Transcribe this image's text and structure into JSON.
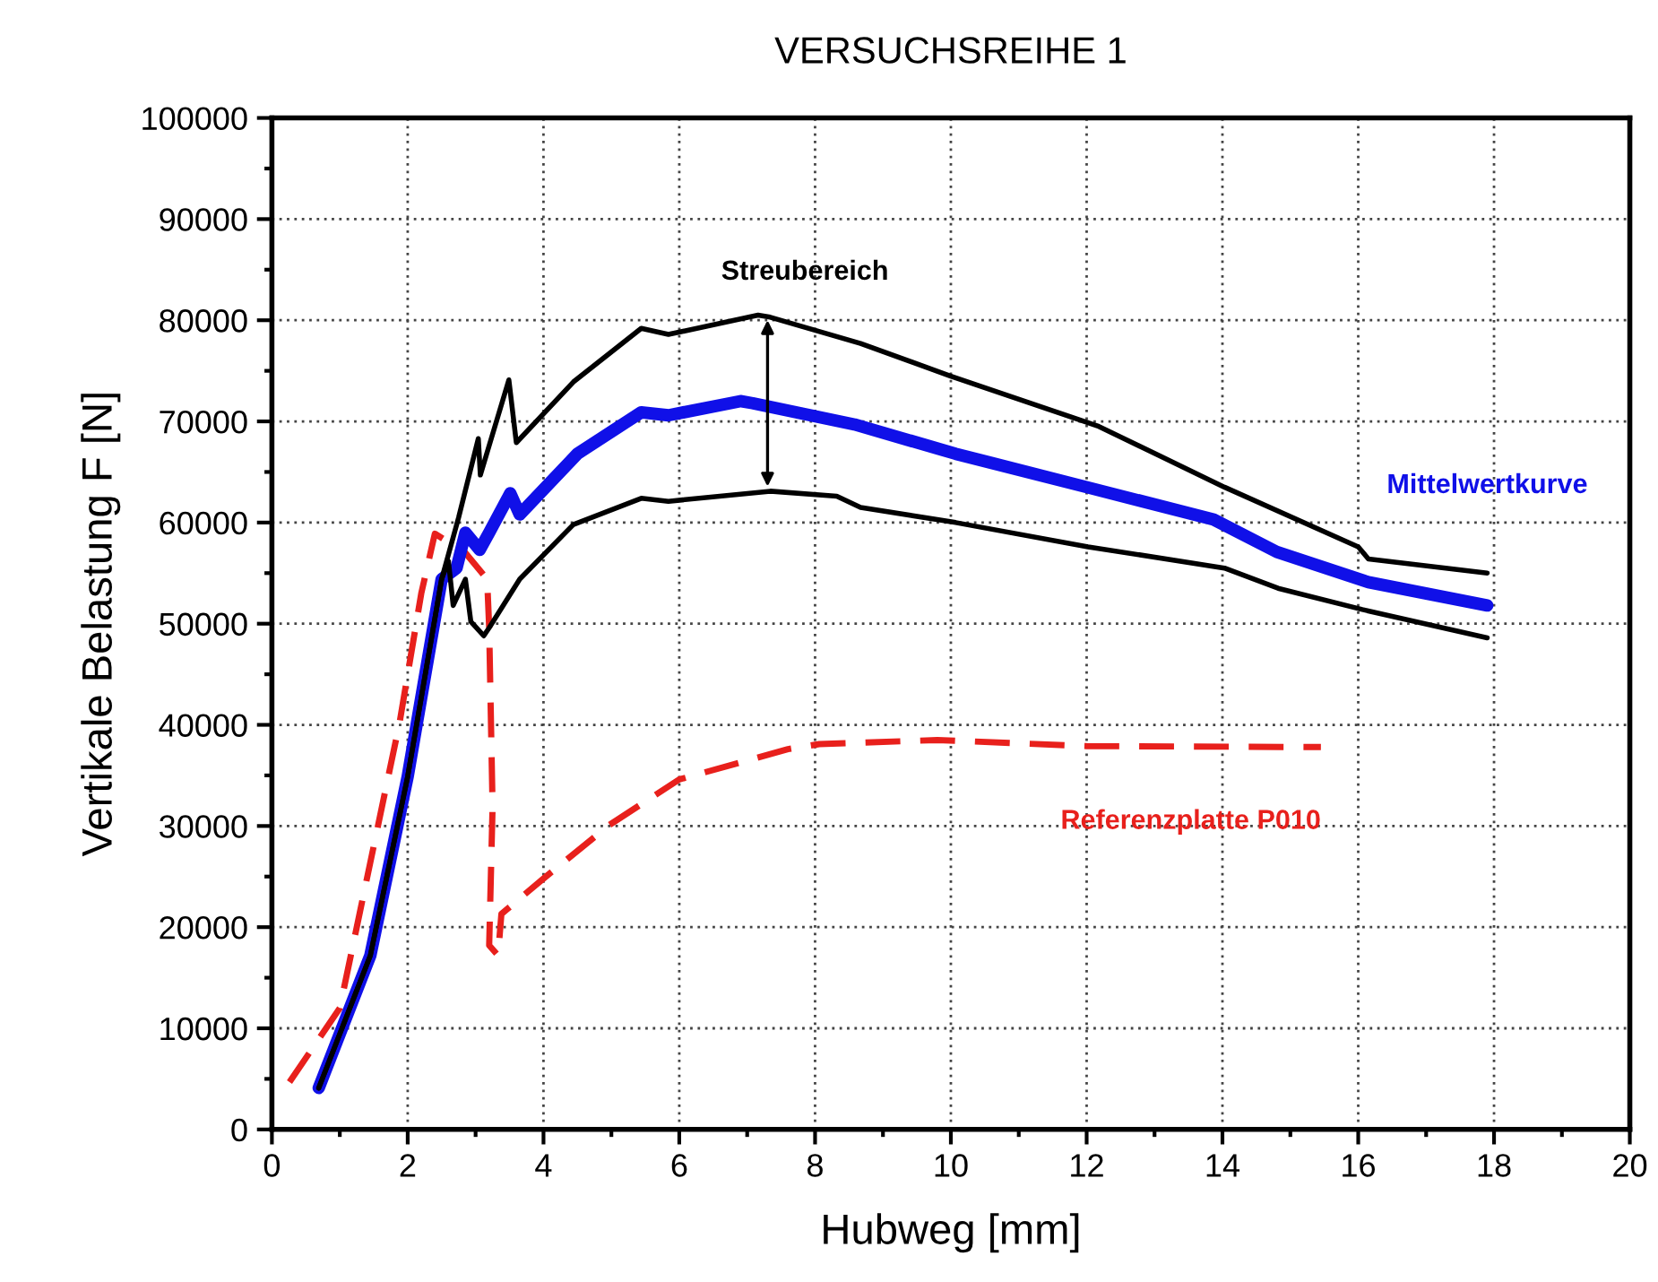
{
  "chart_data": {
    "type": "line",
    "title": "VERSUCHSREIHE 1",
    "xlabel": "Hubweg [mm]",
    "ylabel": "Vertikale Belastung F [N]",
    "xlim": [
      0,
      20
    ],
    "xticks": [
      0,
      2,
      4,
      6,
      8,
      10,
      12,
      14,
      16,
      18,
      20
    ],
    "ylim": [
      0,
      100000
    ],
    "yticks": [
      0,
      10000,
      20000,
      30000,
      40000,
      50000,
      60000,
      70000,
      80000,
      90000,
      100000
    ],
    "grid": true,
    "legend": false,
    "annotations": [
      {
        "text": "Streubereich",
        "x": 7.3,
        "y": 80500
      }
    ],
    "series": [
      {
        "name": "Referenzplatte P010",
        "color": "#e8201c",
        "line_style": "dashed",
        "x": [
          0.2,
          1.0,
          1.88,
          2.2,
          2.4,
          2.85,
          3.17,
          3.2,
          3.25,
          3.2,
          3.33,
          3.38,
          4.0,
          4.97,
          6.0,
          7.6,
          8.06,
          9.8,
          12.0,
          15.45
        ],
        "values": [
          4100,
          12000,
          40200,
          53000,
          58900,
          57000,
          54400,
          49600,
          31900,
          18200,
          17200,
          21300,
          24800,
          30100,
          34600,
          37600,
          38100,
          38500,
          37900,
          37800
        ]
      },
      {
        "name": "Mittelwertkurve",
        "color": "#1010e8",
        "line_style": "solid",
        "x": [
          0.69,
          1.45,
          2.0,
          2.5,
          2.72,
          2.85,
          3.06,
          3.2,
          3.51,
          3.65,
          4.5,
          5.44,
          5.84,
          6.9,
          7.08,
          8.58,
          10.07,
          12.0,
          13.87,
          14.8,
          16.15,
          17.9
        ],
        "values": [
          4100,
          17200,
          34900,
          54400,
          55500,
          59000,
          57300,
          59000,
          62900,
          60800,
          66800,
          70900,
          70600,
          72000,
          71800,
          69700,
          66800,
          63500,
          60300,
          57100,
          54100,
          51800
        ]
      },
      {
        "color": "#000000",
        "line_style": "solid",
        "x": [
          0.69,
          1.45,
          2.0,
          2.5,
          2.75,
          3.04,
          3.07,
          3.49,
          3.6,
          4.44,
          5.44,
          5.84,
          7.16,
          7.34,
          8.67,
          9.99,
          12.18,
          14.03,
          16.0,
          16.15,
          17.9
        ],
        "values": [
          4100,
          17200,
          34900,
          54400,
          60500,
          68300,
          64700,
          74100,
          67900,
          73900,
          79200,
          78600,
          80500,
          80300,
          77700,
          74500,
          69500,
          63500,
          57600,
          56400,
          55000
        ]
      },
      {
        "color": "#000000",
        "line_style": "solid",
        "x": [
          0.69,
          1.45,
          2.0,
          2.5,
          2.6,
          2.67,
          2.85,
          2.93,
          3.12,
          3.2,
          3.65,
          4.44,
          5.44,
          5.84,
          7.34,
          8.32,
          8.67,
          10.07,
          12.02,
          14.03,
          14.82,
          16.06,
          17.9
        ],
        "values": [
          4100,
          17200,
          34900,
          54400,
          56200,
          51800,
          54400,
          50200,
          48800,
          49600,
          54400,
          59800,
          62400,
          62100,
          63100,
          62600,
          61500,
          60000,
          57600,
          55500,
          53500,
          51400,
          48600
        ]
      }
    ]
  }
}
